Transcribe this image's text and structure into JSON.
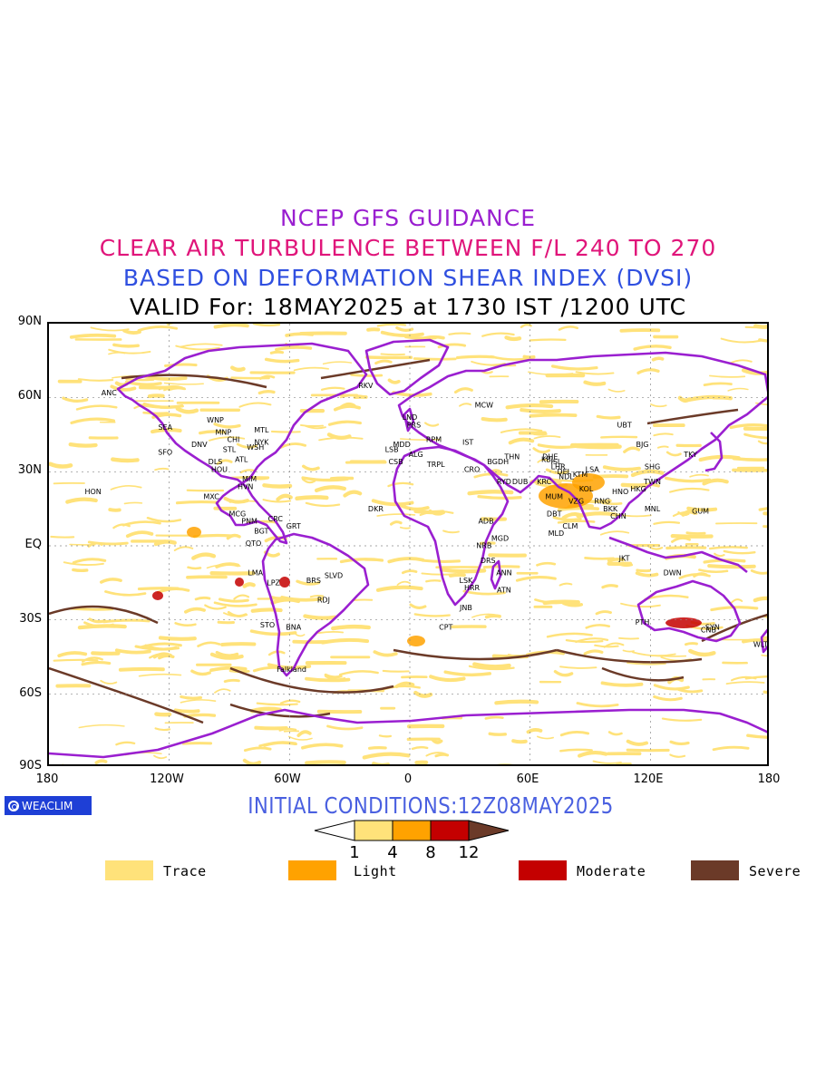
{
  "titles": {
    "line1": "NCEP GFS GUIDANCE",
    "line2": "CLEAR AIR TURBULENCE BETWEEN F/L 240 TO 270",
    "line3": "BASED ON DEFORMATION SHEAR INDEX (DVSI)",
    "line4": "VALID For: 18MAY2025 at 1730 IST /1200 UTC"
  },
  "colors": {
    "title1": "#9a1fd0",
    "title2": "#e0157a",
    "title3": "#2f4fe0",
    "title4": "#000000",
    "coast": "#9a1fd0",
    "trace": "#ffe27a",
    "light": "#ffa200",
    "moderate": "#c40000",
    "severe": "#6b3a28",
    "initial_text": "#4a60e0",
    "logo_bg": "#1e3fd6"
  },
  "axes": {
    "lat_labels": [
      "90N",
      "60N",
      "30N",
      "EQ",
      "30S",
      "60S",
      "90S"
    ],
    "lon_labels": [
      "180",
      "120W",
      "60W",
      "0",
      "60E",
      "120E",
      "180"
    ]
  },
  "logo": {
    "text": "WEACLIM"
  },
  "initial_conditions": "INITIAL CONDITIONS:12Z08MAY2025",
  "scale": {
    "ticks": [
      "1",
      "4",
      "8",
      "12"
    ]
  },
  "legend": [
    {
      "label": "Trace",
      "color": "#ffe27a"
    },
    {
      "label": "Light",
      "color": "#ffa200"
    },
    {
      "label": "Moderate",
      "color": "#c40000"
    },
    {
      "label": "Severe",
      "color": "#6b3a28"
    }
  ],
  "stations": [
    {
      "code": "ANC",
      "lon": -150,
      "lat": 61
    },
    {
      "code": "HON",
      "lon": -158,
      "lat": 21
    },
    {
      "code": "SEA",
      "lon": -122,
      "lat": 47
    },
    {
      "code": "SFO",
      "lon": -122,
      "lat": 37
    },
    {
      "code": "DNV",
      "lon": -105,
      "lat": 40
    },
    {
      "code": "WNP",
      "lon": -97,
      "lat": 50
    },
    {
      "code": "MNP",
      "lon": -93,
      "lat": 45
    },
    {
      "code": "CHI",
      "lon": -88,
      "lat": 42
    },
    {
      "code": "STL",
      "lon": -90,
      "lat": 38
    },
    {
      "code": "MTL",
      "lon": -74,
      "lat": 46
    },
    {
      "code": "NYK",
      "lon": -74,
      "lat": 41
    },
    {
      "code": "WSH",
      "lon": -77,
      "lat": 39
    },
    {
      "code": "ATL",
      "lon": -84,
      "lat": 34
    },
    {
      "code": "HOU",
      "lon": -95,
      "lat": 30
    },
    {
      "code": "DLS",
      "lon": -97,
      "lat": 33
    },
    {
      "code": "MIM",
      "lon": -80,
      "lat": 26
    },
    {
      "code": "HVN",
      "lon": -82,
      "lat": 23
    },
    {
      "code": "MXC",
      "lon": -99,
      "lat": 19
    },
    {
      "code": "MCG",
      "lon": -86,
      "lat": 12
    },
    {
      "code": "CRC",
      "lon": -67,
      "lat": 10
    },
    {
      "code": "PNM",
      "lon": -80,
      "lat": 9
    },
    {
      "code": "BGT",
      "lon": -74,
      "lat": 5
    },
    {
      "code": "QTO",
      "lon": -78,
      "lat": 0
    },
    {
      "code": "GRT",
      "lon": -58,
      "lat": 7
    },
    {
      "code": "LMA",
      "lon": -77,
      "lat": -12
    },
    {
      "code": "LPZ",
      "lon": -68,
      "lat": -16
    },
    {
      "code": "BRS",
      "lon": -48,
      "lat": -15
    },
    {
      "code": "SLVD",
      "lon": -38,
      "lat": -13
    },
    {
      "code": "RDJ",
      "lon": -43,
      "lat": -23
    },
    {
      "code": "STO",
      "lon": -71,
      "lat": -33
    },
    {
      "code": "BNA",
      "lon": -58,
      "lat": -34
    },
    {
      "code": "Falkland",
      "lon": -59,
      "lat": -51
    },
    {
      "code": "RKV",
      "lon": -22,
      "lat": 64
    },
    {
      "code": "LND",
      "lon": 0,
      "lat": 51
    },
    {
      "code": "PRS",
      "lon": 2,
      "lat": 48
    },
    {
      "code": "MDD",
      "lon": -4,
      "lat": 40
    },
    {
      "code": "LSB",
      "lon": -9,
      "lat": 38
    },
    {
      "code": "CSB",
      "lon": -7,
      "lat": 33
    },
    {
      "code": "ALG",
      "lon": 3,
      "lat": 36
    },
    {
      "code": "RPM",
      "lon": 12,
      "lat": 42
    },
    {
      "code": "TRPL",
      "lon": 13,
      "lat": 32
    },
    {
      "code": "IST",
      "lon": 29,
      "lat": 41
    },
    {
      "code": "MCW",
      "lon": 37,
      "lat": 56
    },
    {
      "code": "CRO",
      "lon": 31,
      "lat": 30
    },
    {
      "code": "DKR",
      "lon": -17,
      "lat": 14
    },
    {
      "code": "ADB",
      "lon": 38,
      "lat": 9
    },
    {
      "code": "NRB",
      "lon": 37,
      "lat": -1
    },
    {
      "code": "DRS",
      "lon": 39,
      "lat": -7
    },
    {
      "code": "MGD",
      "lon": 45,
      "lat": 2
    },
    {
      "code": "ANN",
      "lon": 47,
      "lat": -12
    },
    {
      "code": "ATN",
      "lon": 47,
      "lat": -19
    },
    {
      "code": "HRR",
      "lon": 31,
      "lat": -18
    },
    {
      "code": "LSK",
      "lon": 28,
      "lat": -15
    },
    {
      "code": "JNB",
      "lon": 28,
      "lat": -26
    },
    {
      "code": "CPT",
      "lon": 18,
      "lat": -34
    },
    {
      "code": "BGDH",
      "lon": 44,
      "lat": 33
    },
    {
      "code": "THN",
      "lon": 51,
      "lat": 35
    },
    {
      "code": "RYD",
      "lon": 47,
      "lat": 25
    },
    {
      "code": "DUB",
      "lon": 55,
      "lat": 25
    },
    {
      "code": "KRC",
      "lon": 67,
      "lat": 25
    },
    {
      "code": "DHE",
      "lon": 70,
      "lat": 35
    },
    {
      "code": "KBL",
      "lon": 69,
      "lat": 34
    },
    {
      "code": "ISL",
      "lon": 73,
      "lat": 33
    },
    {
      "code": "LHR",
      "lon": 74,
      "lat": 31
    },
    {
      "code": "DEL",
      "lon": 77,
      "lat": 29
    },
    {
      "code": "NDL",
      "lon": 78,
      "lat": 27
    },
    {
      "code": "KTM",
      "lon": 85,
      "lat": 28
    },
    {
      "code": "LSA",
      "lon": 91,
      "lat": 30
    },
    {
      "code": "KOL",
      "lon": 88,
      "lat": 22
    },
    {
      "code": "MUM",
      "lon": 72,
      "lat": 19
    },
    {
      "code": "VZG",
      "lon": 83,
      "lat": 17
    },
    {
      "code": "DBT",
      "lon": 72,
      "lat": 12
    },
    {
      "code": "CLM",
      "lon": 80,
      "lat": 7
    },
    {
      "code": "MLD",
      "lon": 73,
      "lat": 4
    },
    {
      "code": "RNG",
      "lon": 96,
      "lat": 17
    },
    {
      "code": "BKK",
      "lon": 100,
      "lat": 14
    },
    {
      "code": "CHN",
      "lon": 104,
      "lat": 11
    },
    {
      "code": "HNO",
      "lon": 105,
      "lat": 21
    },
    {
      "code": "HKG",
      "lon": 114,
      "lat": 22
    },
    {
      "code": "TWN",
      "lon": 121,
      "lat": 25
    },
    {
      "code": "SHG",
      "lon": 121,
      "lat": 31
    },
    {
      "code": "BJG",
      "lon": 116,
      "lat": 40
    },
    {
      "code": "TKY",
      "lon": 140,
      "lat": 36
    },
    {
      "code": "UBT",
      "lon": 107,
      "lat": 48
    },
    {
      "code": "MNL",
      "lon": 121,
      "lat": 14
    },
    {
      "code": "GUM",
      "lon": 145,
      "lat": 13
    },
    {
      "code": "JKT",
      "lon": 107,
      "lat": -6
    },
    {
      "code": "DWN",
      "lon": 131,
      "lat": -12
    },
    {
      "code": "PTH",
      "lon": 116,
      "lat": -32
    },
    {
      "code": "SYN",
      "lon": 151,
      "lat": -34
    },
    {
      "code": "CNB",
      "lon": 149,
      "lat": -35
    },
    {
      "code": "WLT",
      "lon": 175,
      "lat": -41
    }
  ]
}
